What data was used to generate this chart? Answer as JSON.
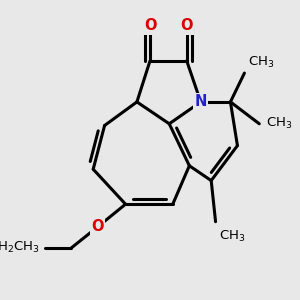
{
  "bg_color": "#e8e8e8",
  "bond_color": "#000000",
  "lw": 2.2,
  "dbo": 0.055,
  "figsize": [
    3.0,
    3.0
  ],
  "dpi": 100,
  "xlim": [
    -1.2,
    1.8
  ],
  "ylim": [
    -1.9,
    1.5
  ],
  "O_color": "#dd0000",
  "N_color": "#2222cc",
  "font_size": 10.5
}
